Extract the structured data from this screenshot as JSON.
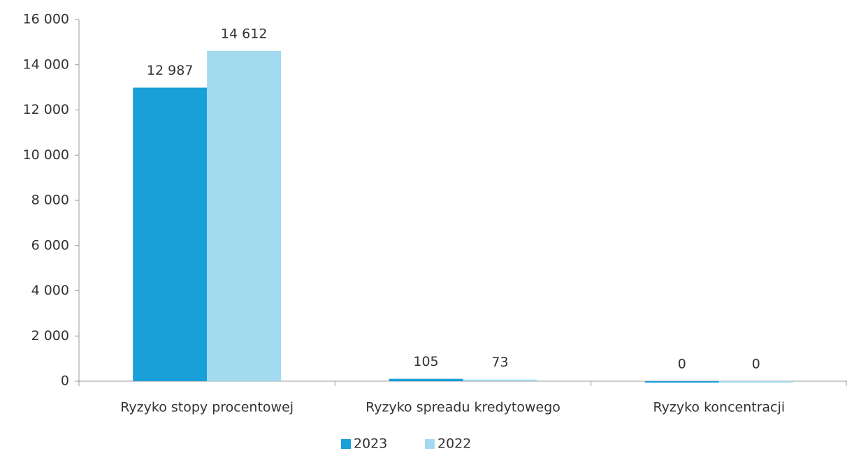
{
  "chart_data": {
    "type": "bar",
    "categories": [
      "Ryzyko stopy procentowej",
      "Ryzyko spreadu kredytowego",
      "Ryzyko koncentracji"
    ],
    "series": [
      {
        "name": "2023",
        "color": "#1aa0d8",
        "values": [
          12987,
          105,
          0
        ],
        "value_labels": [
          "12 987",
          "105",
          "0"
        ]
      },
      {
        "name": "2022",
        "color": "#a3daf0",
        "values": [
          14612,
          73,
          0
        ],
        "value_labels": [
          "14 612",
          "73",
          "0"
        ]
      }
    ],
    "ylim": [
      0,
      16000
    ],
    "yticks": [
      0,
      {
        "value": 2000,
        "label": "2 000"
      },
      {
        "value": 4000,
        "label": "4 000"
      },
      {
        "value": 6000,
        "label": "6 000"
      },
      {
        "value": 8000,
        "label": "8 000"
      },
      {
        "value": 10000,
        "label": "10 000"
      },
      {
        "value": 12000,
        "label": "12 000"
      },
      {
        "value": 14000,
        "label": "14 000"
      },
      {
        "value": 16000,
        "label": "16 000"
      }
    ],
    "grid": false,
    "legend": "bottom"
  }
}
